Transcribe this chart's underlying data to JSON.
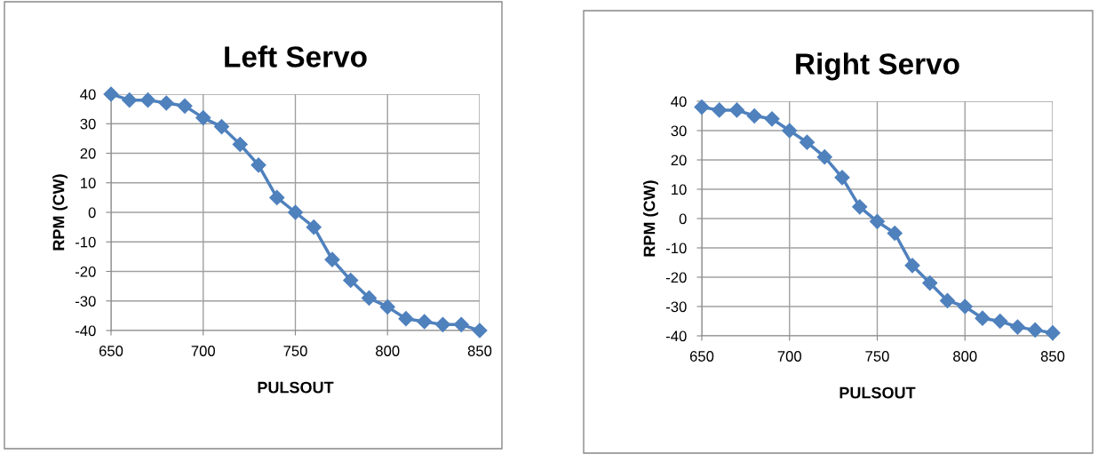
{
  "chart_data": [
    {
      "type": "line",
      "title": "Left Servo",
      "xlabel": "PULSOUT",
      "ylabel": "RPM (CW)",
      "marker": "diamond",
      "line_style": "solid",
      "grid": true,
      "x": [
        650,
        660,
        670,
        680,
        690,
        700,
        710,
        720,
        730,
        740,
        750,
        760,
        770,
        780,
        790,
        800,
        810,
        820,
        830,
        840,
        850
      ],
      "series": [
        {
          "color": "#4f81bd",
          "values": [
            40,
            38,
            38,
            37,
            36,
            32,
            29,
            23,
            16,
            5,
            0,
            -5,
            -16,
            -23,
            -29,
            -32,
            -36,
            -37,
            -38,
            -38,
            -40
          ]
        }
      ],
      "xlim": [
        650,
        850
      ],
      "xticks": [
        650,
        700,
        750,
        800,
        850
      ],
      "ylim": [
        -40,
        40
      ],
      "yticks": [
        -40,
        -30,
        -20,
        -10,
        0,
        10,
        20,
        30,
        40
      ]
    },
    {
      "type": "line",
      "title": "Right Servo",
      "xlabel": "PULSOUT",
      "ylabel": "RPM (CW)",
      "marker": "diamond",
      "line_style": "solid",
      "grid": true,
      "x": [
        650,
        660,
        670,
        680,
        690,
        700,
        710,
        720,
        730,
        740,
        750,
        760,
        770,
        780,
        790,
        800,
        810,
        820,
        830,
        840,
        850
      ],
      "series": [
        {
          "color": "#4f81bd",
          "values": [
            38,
            37,
            37,
            35,
            34,
            30,
            26,
            21,
            14,
            4,
            -1,
            -5,
            -16,
            -22,
            -28,
            -30,
            -34,
            -35,
            -37,
            -38,
            -39
          ]
        }
      ],
      "xlim": [
        650,
        850
      ],
      "xticks": [
        650,
        700,
        750,
        800,
        850
      ],
      "ylim": [
        -40,
        40
      ],
      "yticks": [
        -40,
        -30,
        -20,
        -10,
        0,
        10,
        20,
        30,
        40
      ]
    }
  ]
}
